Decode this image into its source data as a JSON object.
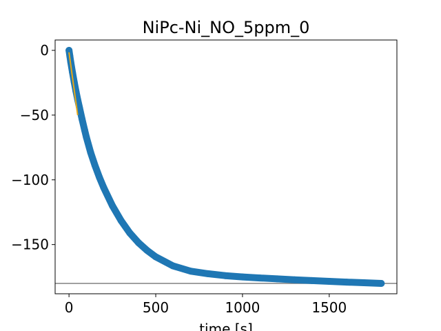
{
  "chart_data": {
    "type": "scatter",
    "title": "NiPc-Ni_NO_5ppm_0",
    "xlabel": "time [s]",
    "ylabel": "",
    "xlim": [
      -80,
      1890
    ],
    "ylim": [
      -188,
      8
    ],
    "xticks": [
      0,
      500,
      1000,
      1500
    ],
    "yticks": [
      0,
      -50,
      -100,
      -150
    ],
    "xtick_labels": [
      "0",
      "500",
      "1000",
      "1500"
    ],
    "ytick_labels": [
      "0",
      "−50",
      "−100",
      "−150"
    ],
    "grid": false,
    "series": [
      {
        "kind": "points",
        "color": "#1f77b4",
        "x": [
          0,
          5,
          10,
          20,
          30,
          40,
          50,
          60,
          75,
          90,
          100,
          125,
          150,
          175,
          200,
          250,
          300,
          350,
          400,
          450,
          500,
          600,
          700,
          800,
          900,
          1000,
          1100,
          1200,
          1300,
          1400,
          1500,
          1600,
          1700,
          1800
        ],
        "y": [
          0,
          -4.5,
          -9,
          -17,
          -24.5,
          -31.5,
          -38,
          -44,
          -53,
          -61.5,
          -67,
          -79,
          -89,
          -98,
          -106,
          -120,
          -131.5,
          -141,
          -148.5,
          -154.5,
          -159.5,
          -166.5,
          -170.5,
          -172.5,
          -174,
          -175,
          -175.8,
          -176.5,
          -177.2,
          -177.8,
          -178.4,
          -179,
          -179.5,
          -180
        ]
      },
      {
        "kind": "line",
        "color": "#e6a817",
        "x": [
          0,
          50
        ],
        "y": [
          -1.5,
          -50
        ]
      },
      {
        "kind": "hline",
        "color": "#808080",
        "y": -180
      }
    ]
  }
}
